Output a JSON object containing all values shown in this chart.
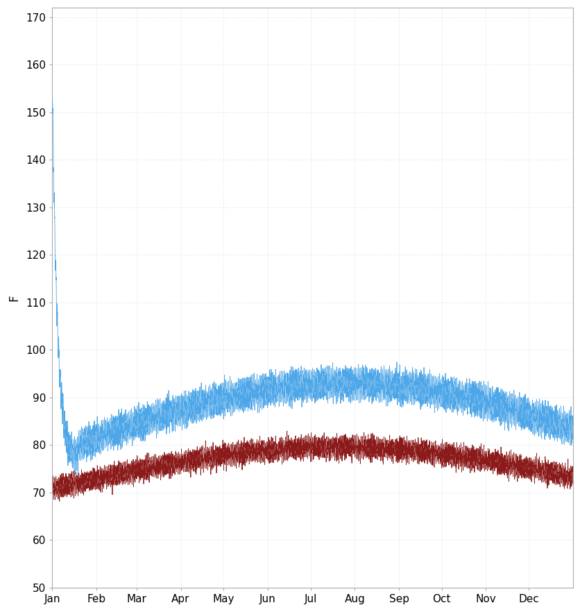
{
  "ylabel": "F",
  "ylim": [
    50,
    172
  ],
  "yticks": [
    50,
    60,
    70,
    80,
    90,
    100,
    110,
    120,
    130,
    140,
    150,
    160,
    170
  ],
  "background_color": "#ffffff",
  "grid_color": "#d0dce8",
  "blue_color": "#4da6e8",
  "red_color": "#8b1a1a",
  "line_width": 0.6,
  "n_points": 8760,
  "seed": 42
}
